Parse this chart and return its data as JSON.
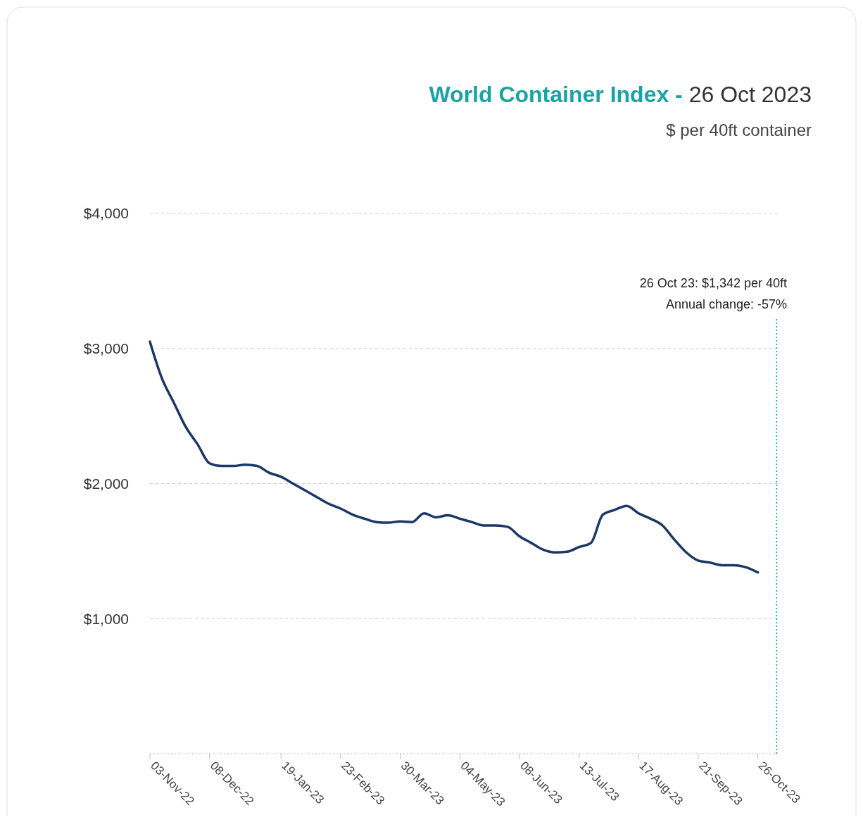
{
  "chart_data": {
    "type": "line",
    "title": "World Container Index - 26 Oct 2023",
    "subtitle": "$ per 40ft container",
    "annotations": [
      "26 Oct 23: $1,342 per 40ft",
      "Annual change: -57%"
    ],
    "x": [
      "2022-11-03",
      "2022-11-10",
      "2022-11-17",
      "2022-11-24",
      "2022-12-01",
      "2022-12-08",
      "2022-12-15",
      "2022-12-22",
      "2022-12-29",
      "2023-01-05",
      "2023-01-12",
      "2023-01-19",
      "2023-01-26",
      "2023-02-02",
      "2023-02-09",
      "2023-02-16",
      "2023-02-23",
      "2023-03-02",
      "2023-03-09",
      "2023-03-16",
      "2023-03-23",
      "2023-03-30",
      "2023-04-06",
      "2023-04-13",
      "2023-04-20",
      "2023-04-27",
      "2023-05-04",
      "2023-05-11",
      "2023-05-18",
      "2023-05-25",
      "2023-06-01",
      "2023-06-08",
      "2023-06-15",
      "2023-06-22",
      "2023-06-29",
      "2023-07-06",
      "2023-07-13",
      "2023-07-20",
      "2023-07-27",
      "2023-08-03",
      "2023-08-10",
      "2023-08-17",
      "2023-08-24",
      "2023-08-31",
      "2023-09-07",
      "2023-09-14",
      "2023-09-21",
      "2023-09-28",
      "2023-10-05",
      "2023-10-12",
      "2023-10-19",
      "2023-10-26"
    ],
    "series": [
      {
        "color": "#1b3768",
        "values": [
          3050,
          2780,
          2600,
          2420,
          2290,
          2150,
          2130,
          2130,
          2140,
          2130,
          2080,
          2050,
          2000,
          1950,
          1900,
          1850,
          1815,
          1770,
          1740,
          1715,
          1710,
          1720,
          1715,
          1780,
          1750,
          1765,
          1740,
          1715,
          1690,
          1690,
          1680,
          1610,
          1560,
          1510,
          1490,
          1495,
          1530,
          1560,
          1770,
          1805,
          1835,
          1780,
          1740,
          1690,
          1585,
          1490,
          1430,
          1415,
          1395,
          1395,
          1380,
          1342
        ]
      }
    ],
    "xlim": [
      "2022-11-03",
      "2023-11-08"
    ],
    "xticks": [
      {
        "value": "2022-11-03",
        "label": "03-Nov-22"
      },
      {
        "value": "2022-12-08",
        "label": "08-Dec-22"
      },
      {
        "value": "2023-01-19",
        "label": "19-Jan-23"
      },
      {
        "value": "2023-02-23",
        "label": "23-Feb-23"
      },
      {
        "value": "2023-03-30",
        "label": "30-Mar-23"
      },
      {
        "value": "2023-05-04",
        "label": "04-May-23"
      },
      {
        "value": "2023-06-08",
        "label": "08-Jun-23"
      },
      {
        "value": "2023-07-13",
        "label": "13-Jul-23"
      },
      {
        "value": "2023-08-17",
        "label": "17-Aug-23"
      },
      {
        "value": "2023-09-21",
        "label": "21-Sep-23"
      },
      {
        "value": "2023-10-26",
        "label": "26-Oct-23"
      }
    ],
    "ylim": [
      0,
      4000
    ],
    "yticks": [
      {
        "value": 1000,
        "label": "$1,000"
      },
      {
        "value": 2000,
        "label": "$2,000"
      },
      {
        "value": 3000,
        "label": "$3,000"
      },
      {
        "value": 4000,
        "label": "$4,000"
      }
    ],
    "ref_lines": [
      {
        "axis": "x",
        "value": "2023-11-06",
        "color": "#2bb5b0",
        "line_style": "dotted"
      }
    ],
    "grid": "y",
    "marker": "none",
    "line_style": "solid"
  }
}
